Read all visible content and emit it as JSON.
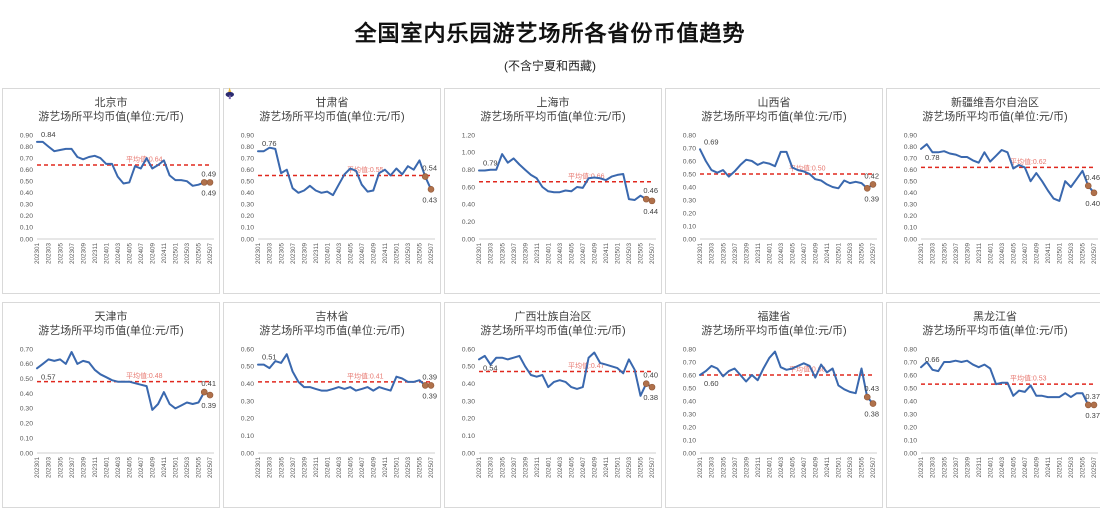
{
  "page": {
    "title": "全国室内乐园游艺场所各省份币值趋势",
    "subtitle": "(不含宁夏和西藏)"
  },
  "colors": {
    "line": "#3a68ae",
    "avg_line": "#e0281e",
    "avg_label": "#e2574d",
    "marker_fill": "#b0714b",
    "marker_stroke": "#8f5636",
    "data_label": "#404040",
    "axis_text": "#595959",
    "axis_line": "#bfbfbf",
    "panel_border": "#d9d9d9"
  },
  "chart_data": {
    "type": "line",
    "x_frequency": "monthly",
    "x_range": [
      "202301",
      "202507"
    ],
    "x_labels": [
      "202301",
      "202303",
      "202305",
      "202307",
      "202309",
      "202311",
      "202401",
      "202403",
      "202405",
      "202407",
      "202409",
      "202411",
      "202501",
      "202503",
      "202505",
      "202507"
    ],
    "legend": "none",
    "grid": false,
    "charts": [
      {
        "title": "北京市",
        "subtitle": "游艺场所平均币值(单位:元/币)",
        "ylim": [
          0,
          0.9
        ],
        "ystep": 0.1,
        "avg": 0.64,
        "avg_label": "平均值:0.64",
        "first_label": "0.84",
        "first_label_pos": "above",
        "end_labels": {
          "above": "0.49",
          "below": "0.49"
        },
        "values": [
          0.84,
          0.84,
          0.8,
          0.76,
          0.77,
          0.78,
          0.78,
          0.71,
          0.69,
          0.71,
          0.72,
          0.7,
          0.65,
          0.65,
          0.54,
          0.48,
          0.49,
          0.63,
          0.61,
          0.7,
          0.61,
          0.64,
          0.68,
          0.55,
          0.51,
          0.51,
          0.5,
          0.46,
          0.47,
          0.49,
          0.49
        ]
      },
      {
        "title": "甘肃省",
        "subtitle": "游艺场所平均币值(单位:元/币)",
        "ylim": [
          0,
          0.9
        ],
        "ystep": 0.1,
        "avg": 0.55,
        "avg_label": "平均值:0.55",
        "first_label": "0.76",
        "first_label_pos": "above",
        "end_labels": {
          "above": "0.54",
          "below": "0.43"
        },
        "values": [
          0.76,
          0.76,
          0.79,
          0.78,
          0.57,
          0.6,
          0.44,
          0.4,
          0.42,
          0.46,
          0.42,
          0.4,
          0.41,
          0.38,
          0.47,
          0.56,
          0.61,
          0.59,
          0.47,
          0.41,
          0.42,
          0.57,
          0.6,
          0.55,
          0.61,
          0.56,
          0.63,
          0.6,
          0.68,
          0.54,
          0.43
        ]
      },
      {
        "title": "上海市",
        "subtitle": "游艺场所平均币值(单位:元/币)",
        "ylim": [
          0,
          1.2
        ],
        "ystep": 0.2,
        "avg": 0.66,
        "avg_label": "平均值:0.66",
        "first_label": "0.79",
        "first_label_pos": "above",
        "end_labels": {
          "above": "0.46",
          "below": "0.44"
        },
        "values": [
          0.79,
          0.79,
          0.8,
          0.8,
          0.98,
          0.88,
          0.93,
          0.86,
          0.8,
          0.74,
          0.7,
          0.6,
          0.55,
          0.54,
          0.54,
          0.56,
          0.55,
          0.6,
          0.59,
          0.7,
          0.71,
          0.7,
          0.68,
          0.72,
          0.74,
          0.75,
          0.46,
          0.45,
          0.5,
          0.46,
          0.44
        ]
      },
      {
        "title": "山西省",
        "subtitle": "游艺场所平均币值(单位:元/币)",
        "ylim": [
          0,
          0.8
        ],
        "ystep": 0.1,
        "avg": 0.5,
        "avg_label": "平均值:0.50",
        "first_label": "0.69",
        "first_label_pos": "above",
        "end_labels": {
          "above": "0.42",
          "below": "0.39"
        },
        "values": [
          0.69,
          0.6,
          0.53,
          0.51,
          0.53,
          0.48,
          0.52,
          0.57,
          0.61,
          0.6,
          0.57,
          0.59,
          0.58,
          0.56,
          0.67,
          0.67,
          0.55,
          0.53,
          0.52,
          0.5,
          0.46,
          0.45,
          0.42,
          0.4,
          0.39,
          0.45,
          0.43,
          0.44,
          0.43,
          0.39,
          0.42
        ]
      },
      {
        "title": "新疆维吾尔自治区",
        "subtitle": "游艺场所平均币值(单位:元/币)",
        "ylim": [
          0,
          0.9
        ],
        "ystep": 0.1,
        "avg": 0.62,
        "avg_label": "平均值:0.62",
        "first_label": "0.78",
        "first_label_pos": "below",
        "end_labels": {
          "above": "0.46",
          "below": "0.40"
        },
        "values": [
          0.78,
          0.82,
          0.75,
          0.75,
          0.76,
          0.74,
          0.73,
          0.71,
          0.71,
          0.68,
          0.66,
          0.75,
          0.67,
          0.72,
          0.77,
          0.75,
          0.61,
          0.64,
          0.62,
          0.5,
          0.57,
          0.5,
          0.42,
          0.35,
          0.33,
          0.5,
          0.45,
          0.52,
          0.59,
          0.46,
          0.4
        ]
      },
      {
        "title": "天津市",
        "subtitle": "游艺场所平均币值(单位:元/币)",
        "ylim": [
          0,
          0.7
        ],
        "ystep": 0.1,
        "avg": 0.48,
        "avg_label": "平均值:0.48",
        "first_label": "0.57",
        "first_label_pos": "below",
        "end_labels": {
          "above": "0.41",
          "below": "0.39"
        },
        "values": [
          0.57,
          0.6,
          0.63,
          0.62,
          0.63,
          0.6,
          0.68,
          0.6,
          0.62,
          0.61,
          0.56,
          0.53,
          0.51,
          0.49,
          0.48,
          0.48,
          0.48,
          0.47,
          0.46,
          0.45,
          0.29,
          0.33,
          0.41,
          0.33,
          0.3,
          0.32,
          0.34,
          0.33,
          0.34,
          0.41,
          0.39
        ]
      },
      {
        "title": "吉林省",
        "subtitle": "游艺场所平均币值(单位:元/币)",
        "ylim": [
          0,
          0.6
        ],
        "ystep": 0.1,
        "avg": 0.41,
        "avg_label": "平均值:0.41",
        "first_label": "0.51",
        "first_label_pos": "above",
        "end_labels": {
          "above": "0.39",
          "below": "0.39"
        },
        "values": [
          0.51,
          0.51,
          0.49,
          0.53,
          0.52,
          0.57,
          0.47,
          0.41,
          0.38,
          0.38,
          0.37,
          0.36,
          0.36,
          0.37,
          0.38,
          0.37,
          0.38,
          0.36,
          0.37,
          0.38,
          0.36,
          0.38,
          0.37,
          0.36,
          0.44,
          0.43,
          0.41,
          0.41,
          0.42,
          0.39,
          0.39
        ]
      },
      {
        "title": "广西壮族自治区",
        "subtitle": "游艺场所平均币值(单位:元/币)",
        "ylim": [
          0,
          0.6
        ],
        "ystep": 0.1,
        "avg": 0.47,
        "avg_label": "平均值:0.47",
        "first_label": "0.54",
        "first_label_pos": "below",
        "end_labels": {
          "above": "0.40",
          "below": "0.38"
        },
        "values": [
          0.54,
          0.56,
          0.51,
          0.55,
          0.55,
          0.54,
          0.55,
          0.56,
          0.5,
          0.45,
          0.44,
          0.45,
          0.38,
          0.41,
          0.42,
          0.41,
          0.38,
          0.37,
          0.38,
          0.55,
          0.58,
          0.52,
          0.51,
          0.5,
          0.49,
          0.46,
          0.54,
          0.48,
          0.33,
          0.4,
          0.38
        ]
      },
      {
        "title": "福建省",
        "subtitle": "游艺场所平均币值(单位:元/币)",
        "ylim": [
          0,
          0.8
        ],
        "ystep": 0.1,
        "avg": 0.6,
        "avg_label": "平均值:0.60",
        "first_label": "0.60",
        "first_label_pos": "below",
        "end_labels": {
          "above": "0.43",
          "below": "0.38"
        },
        "values": [
          0.6,
          0.63,
          0.67,
          0.65,
          0.59,
          0.63,
          0.65,
          0.6,
          0.55,
          0.6,
          0.56,
          0.65,
          0.73,
          0.78,
          0.66,
          0.64,
          0.65,
          0.67,
          0.69,
          0.67,
          0.58,
          0.68,
          0.62,
          0.65,
          0.52,
          0.49,
          0.47,
          0.46,
          0.65,
          0.43,
          0.38
        ]
      },
      {
        "title": "黑龙江省",
        "subtitle": "游艺场所平均币值(单位:元/币)",
        "ylim": [
          0,
          0.8
        ],
        "ystep": 0.1,
        "avg": 0.53,
        "avg_label": "平均值:0.53",
        "first_label": "0.66",
        "first_label_pos": "above",
        "end_labels": {
          "above": "0.37",
          "below": "0.37"
        },
        "values": [
          0.66,
          0.7,
          0.64,
          0.63,
          0.7,
          0.7,
          0.71,
          0.7,
          0.71,
          0.68,
          0.66,
          0.68,
          0.65,
          0.53,
          0.54,
          0.54,
          0.44,
          0.48,
          0.47,
          0.52,
          0.44,
          0.44,
          0.43,
          0.43,
          0.43,
          0.46,
          0.43,
          0.46,
          0.46,
          0.37,
          0.37
        ]
      }
    ]
  }
}
